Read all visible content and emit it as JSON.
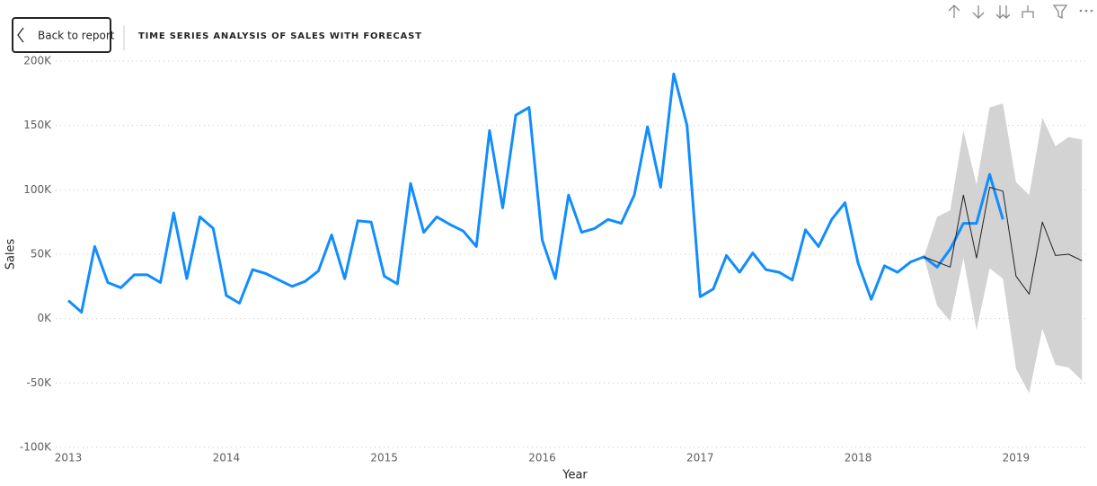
{
  "header": {
    "back_button": "Back to report"
  },
  "chart_data": {
    "type": "line",
    "title": "TIME SERIES ANALYSIS OF SALES WITH FORECAST",
    "x_label": "Year",
    "y_label": "Sales",
    "xlim": [
      2012.92,
      2019.45
    ],
    "xticks": [
      2013,
      2014,
      2015,
      2016,
      2017,
      2018,
      2019
    ],
    "ylim": [
      -100000,
      200000
    ],
    "yticks": [
      {
        "value": -100000,
        "label": "-100K"
      },
      {
        "value": -50000,
        "label": "-50K"
      },
      {
        "value": 0,
        "label": "0K"
      },
      {
        "value": 50000,
        "label": "50K"
      },
      {
        "value": 100000,
        "label": "100K"
      },
      {
        "value": 150000,
        "label": "150K"
      },
      {
        "value": 200000,
        "label": "200K"
      }
    ],
    "grid": true,
    "x": [
      2013,
      2013.083,
      2013.167,
      2013.25,
      2013.333,
      2013.417,
      2013.5,
      2013.583,
      2013.667,
      2013.75,
      2013.833,
      2013.917,
      2014,
      2014.083,
      2014.167,
      2014.25,
      2014.333,
      2014.417,
      2014.5,
      2014.583,
      2014.667,
      2014.75,
      2014.833,
      2014.917,
      2015,
      2015.083,
      2015.167,
      2015.25,
      2015.333,
      2015.417,
      2015.5,
      2015.583,
      2015.667,
      2015.75,
      2015.833,
      2015.917,
      2016,
      2016.083,
      2016.167,
      2016.25,
      2016.333,
      2016.417,
      2016.5,
      2016.583,
      2016.667,
      2016.75,
      2016.833,
      2016.917,
      2017,
      2017.083,
      2017.167,
      2017.25,
      2017.333,
      2017.417,
      2017.5,
      2017.583,
      2017.667,
      2017.75,
      2017.833,
      2017.917,
      2018,
      2018.083,
      2018.167,
      2018.25,
      2018.333,
      2018.417,
      2018.5,
      2018.583,
      2018.667,
      2018.75,
      2018.833,
      2018.917,
      2019,
      2019.083,
      2019.167,
      2019.25,
      2019.333,
      2019.417
    ],
    "band": {
      "color": "#d3d3d3",
      "upper": [
        null,
        null,
        null,
        null,
        null,
        null,
        null,
        null,
        null,
        null,
        null,
        null,
        null,
        null,
        null,
        null,
        null,
        null,
        null,
        null,
        null,
        null,
        null,
        null,
        null,
        null,
        null,
        null,
        null,
        null,
        null,
        null,
        null,
        null,
        null,
        null,
        null,
        null,
        null,
        null,
        null,
        null,
        null,
        null,
        null,
        null,
        null,
        null,
        null,
        null,
        null,
        null,
        null,
        null,
        null,
        null,
        null,
        null,
        null,
        null,
        null,
        null,
        null,
        null,
        null,
        48000,
        79000,
        84000,
        146000,
        104000,
        164000,
        167000,
        106000,
        96000,
        156000,
        134000,
        141000,
        139000
      ],
      "lower": [
        null,
        null,
        null,
        null,
        null,
        null,
        null,
        null,
        null,
        null,
        null,
        null,
        null,
        null,
        null,
        null,
        null,
        null,
        null,
        null,
        null,
        null,
        null,
        null,
        null,
        null,
        null,
        null,
        null,
        null,
        null,
        null,
        null,
        null,
        null,
        null,
        null,
        null,
        null,
        null,
        null,
        null,
        null,
        null,
        null,
        null,
        null,
        null,
        null,
        null,
        null,
        null,
        null,
        null,
        null,
        null,
        null,
        null,
        null,
        null,
        null,
        null,
        null,
        null,
        null,
        48000,
        10000,
        -2000,
        47000,
        -9000,
        39000,
        31000,
        -39000,
        -58000,
        -8000,
        -36000,
        -38000,
        -48000
      ]
    },
    "series": [
      {
        "color": "#118DFF",
        "width": 3,
        "values": [
          14000,
          5000,
          56000,
          28000,
          24000,
          34000,
          34000,
          28000,
          82000,
          31000,
          79000,
          70000,
          18000,
          12000,
          38000,
          35000,
          30000,
          25000,
          29000,
          37000,
          65000,
          31000,
          76000,
          75000,
          33000,
          27000,
          105000,
          67000,
          79000,
          73000,
          68000,
          56000,
          146000,
          86000,
          158000,
          164000,
          61000,
          31000,
          96000,
          67000,
          70000,
          77000,
          74000,
          96000,
          149000,
          102000,
          190000,
          150000,
          17000,
          23000,
          49000,
          36000,
          51000,
          38000,
          36000,
          30000,
          69000,
          56000,
          77000,
          90000,
          43000,
          15000,
          41000,
          36000,
          44000,
          48000,
          40000,
          54000,
          74000,
          74000,
          112000,
          77000,
          null,
          null,
          null,
          null,
          null,
          null
        ]
      },
      {
        "color": "#222222",
        "width": 1,
        "values": [
          null,
          null,
          null,
          null,
          null,
          null,
          null,
          null,
          null,
          null,
          null,
          null,
          null,
          null,
          null,
          null,
          null,
          null,
          null,
          null,
          null,
          null,
          null,
          null,
          null,
          null,
          null,
          null,
          null,
          null,
          null,
          null,
          null,
          null,
          null,
          null,
          null,
          null,
          null,
          null,
          null,
          null,
          null,
          null,
          null,
          null,
          null,
          null,
          null,
          null,
          null,
          null,
          null,
          null,
          null,
          null,
          null,
          null,
          null,
          null,
          null,
          null,
          null,
          null,
          null,
          48000,
          44000,
          40000,
          96000,
          47000,
          102000,
          99000,
          33000,
          19000,
          75000,
          49000,
          50000,
          45000
        ]
      }
    ]
  }
}
